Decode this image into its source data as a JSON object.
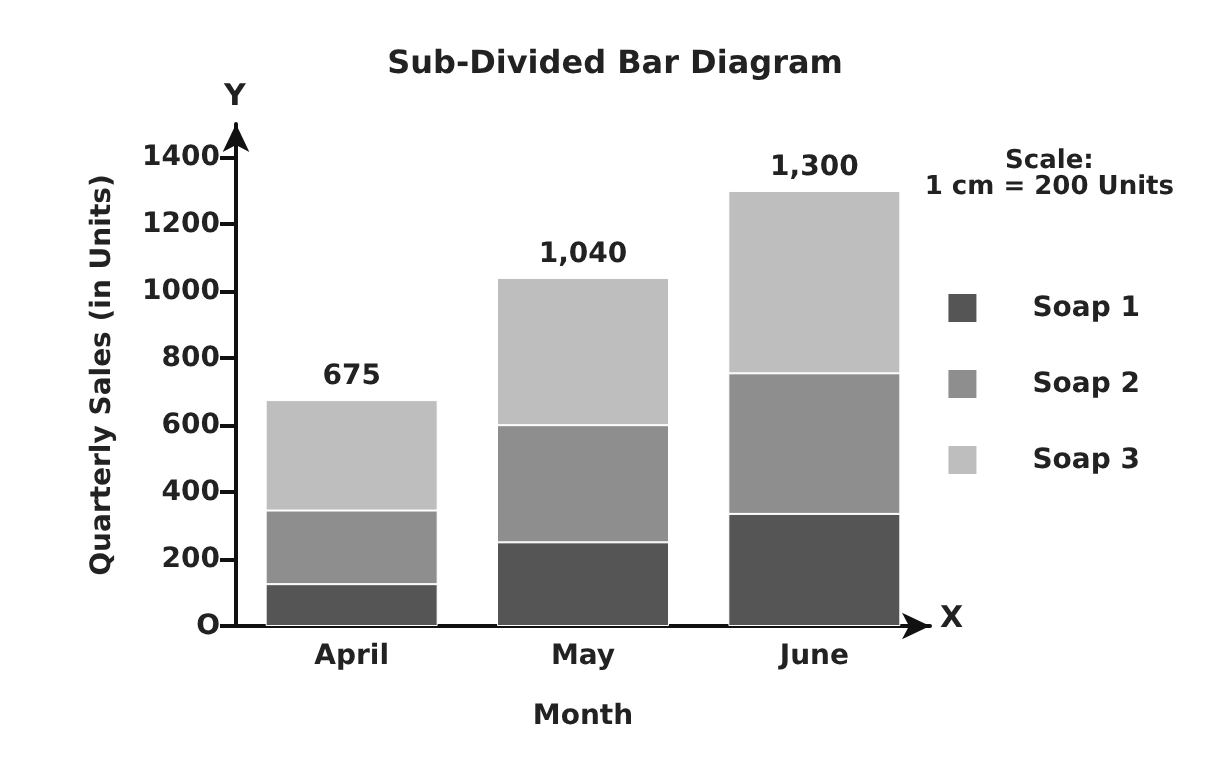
{
  "chart_data": {
    "type": "bar",
    "title": "Sub-Divided Bar Diagram",
    "xlabel": "Month",
    "ylabel": "Quarterly Sales (in Units)",
    "categories": [
      "April",
      "May",
      "June"
    ],
    "series": [
      {
        "name": "Soap 1",
        "color": "#555555",
        "values": [
          125,
          250,
          335
        ]
      },
      {
        "name": "Soap 2",
        "color": "#8e8e8e",
        "values": [
          220,
          350,
          420
        ]
      },
      {
        "name": "Soap 3",
        "color": "#bebebe",
        "values": [
          330,
          440,
          545
        ]
      }
    ],
    "stacked": true,
    "totals": [
      "675",
      "1,040",
      "1,300"
    ],
    "ylim": [
      0,
      1500
    ],
    "yticks": [
      {
        "value": 0,
        "label": "O"
      },
      200,
      400,
      600,
      800,
      1000,
      1200,
      1400
    ],
    "grid": false,
    "legend": "right",
    "marker": "square",
    "annotations": [
      "Scale:\n1 cm = 200 Units",
      "Y",
      "X"
    ]
  }
}
